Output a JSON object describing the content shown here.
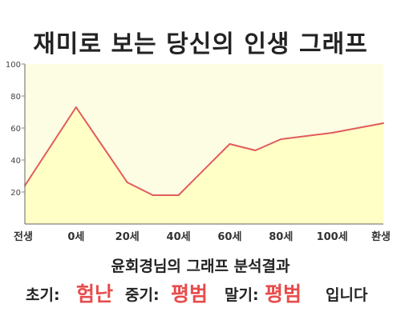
{
  "title": "재미로 보는 당신의 인생 그래프",
  "summary": {
    "heading": "윤회경님의 그래프 분석결과",
    "early_label": "초기:",
    "early_value": "험난",
    "mid_label": "중기:",
    "mid_value": "평범",
    "late_label": "말기:",
    "late_value": "평범",
    "ending": "입니다"
  },
  "colors": {
    "line": "#e15b5b",
    "fill": "#ffffc6",
    "plot_bg": "#fdfde4",
    "accent": "#e74c4c"
  },
  "chart_data": {
    "type": "area",
    "title": "",
    "xlabel": "",
    "ylabel": "",
    "x_tick_labels": [
      "전생",
      "0세",
      "20세",
      "40세",
      "60세",
      "80세",
      "100세",
      "환생"
    ],
    "y_tick_labels": [
      "20",
      "40",
      "60",
      "80",
      "100"
    ],
    "ylim": [
      0,
      100
    ],
    "grid": false,
    "series": [
      {
        "x": [
          -20,
          0,
          20,
          30,
          40,
          60,
          70,
          80,
          100,
          120
        ],
        "values": [
          24,
          73,
          26,
          18,
          18,
          50,
          46,
          53,
          57,
          63
        ]
      }
    ]
  }
}
